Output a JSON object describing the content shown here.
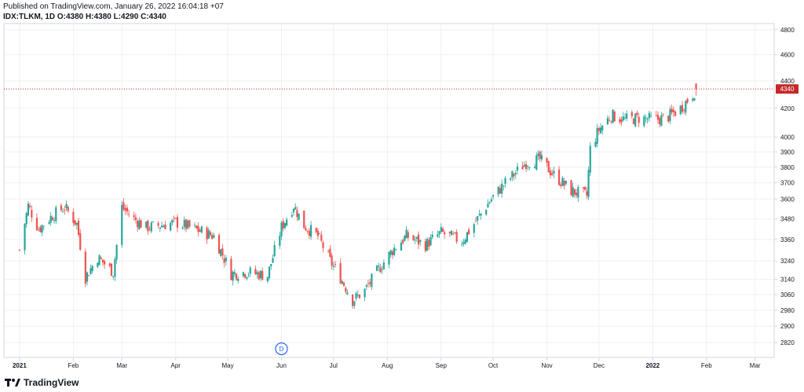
{
  "header": {
    "published": "Published on TradingView.com, January 26, 2022 16:04:18 +07",
    "symbol": "IDX:TLKM, 1D",
    "ohlc": "O:4380 H:4380 L:4290 C:4340"
  },
  "footer": {
    "brand": "TradingView"
  },
  "colors": {
    "up": "#26a69a",
    "down": "#ef5350",
    "price_line": "#c62828",
    "grid": "#eef0f3",
    "axis": "#d1d4dc",
    "text": "#131722",
    "event": "#2962ff"
  },
  "chart_data": {
    "type": "candlestick",
    "title": "",
    "xlabel": "",
    "ylabel": "",
    "log_scale": true,
    "ylim": [
      2750,
      4850
    ],
    "y_ticks": [
      4800,
      4600,
      4400,
      4200,
      4000,
      3900,
      3800,
      3700,
      3600,
      3480,
      3360,
      3240,
      3140,
      3060,
      2980,
      2900,
      2820
    ],
    "x_ticks": [
      "2021",
      "Feb",
      "Mar",
      "Apr",
      "May",
      "Jun",
      "Jul",
      "Aug",
      "Sep",
      "Oct",
      "Nov",
      "Dec",
      "2022",
      "Feb",
      "Mar"
    ],
    "last_price": 4340,
    "last_price_label": "4340",
    "event_marker": {
      "label": "D",
      "date": "2021-06-01"
    },
    "closes_approx": [
      [
        "2021-01-01",
        3300
      ],
      [
        "2021-01-06",
        3560
      ],
      [
        "2021-01-12",
        3420
      ],
      [
        "2021-01-20",
        3500
      ],
      [
        "2021-01-27",
        3550
      ],
      [
        "2021-02-03",
        3450
      ],
      [
        "2021-02-08",
        3150
      ],
      [
        "2021-02-15",
        3260
      ],
      [
        "2021-02-24",
        3180
      ],
      [
        "2021-03-01",
        3550
      ],
      [
        "2021-03-08",
        3480
      ],
      [
        "2021-03-15",
        3430
      ],
      [
        "2021-03-22",
        3440
      ],
      [
        "2021-04-01",
        3460
      ],
      [
        "2021-04-12",
        3420
      ],
      [
        "2021-04-23",
        3380
      ],
      [
        "2021-05-03",
        3170
      ],
      [
        "2021-05-12",
        3180
      ],
      [
        "2021-05-24",
        3160
      ],
      [
        "2021-06-01",
        3430
      ],
      [
        "2021-06-08",
        3560
      ],
      [
        "2021-06-14",
        3440
      ],
      [
        "2021-06-22",
        3380
      ],
      [
        "2021-06-29",
        3240
      ],
      [
        "2021-07-05",
        3150
      ],
      [
        "2021-07-12",
        3030
      ],
      [
        "2021-07-19",
        3080
      ],
      [
        "2021-07-26",
        3180
      ],
      [
        "2021-08-04",
        3300
      ],
      [
        "2021-08-12",
        3380
      ],
      [
        "2021-08-23",
        3330
      ],
      [
        "2021-09-01",
        3400
      ],
      [
        "2021-09-13",
        3350
      ],
      [
        "2021-09-22",
        3480
      ],
      [
        "2021-09-30",
        3600
      ],
      [
        "2021-10-08",
        3700
      ],
      [
        "2021-10-20",
        3830
      ],
      [
        "2021-10-28",
        3850
      ],
      [
        "2021-11-05",
        3750
      ],
      [
        "2021-11-15",
        3650
      ],
      [
        "2021-11-24",
        3620
      ],
      [
        "2021-11-26",
        3920
      ],
      [
        "2021-12-01",
        4050
      ],
      [
        "2021-12-08",
        4150
      ],
      [
        "2021-12-16",
        4120
      ],
      [
        "2021-12-24",
        4130
      ],
      [
        "2022-01-03",
        4120
      ],
      [
        "2022-01-10",
        4140
      ],
      [
        "2022-01-17",
        4200
      ],
      [
        "2022-01-24",
        4300
      ],
      [
        "2022-01-26",
        4340
      ]
    ]
  }
}
